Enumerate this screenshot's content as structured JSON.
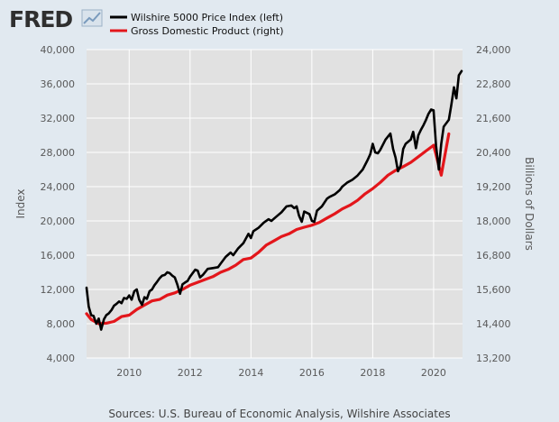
{
  "branding": {
    "logo_text": "FRED"
  },
  "colors": {
    "background": "#e1e9f0",
    "plot_background": "#e1e1e1",
    "grid": "#ffffff",
    "wilshire": "#000000",
    "gdp": "#e3161b",
    "logo_chart_icon": "#7a9bbd"
  },
  "legend": {
    "items": [
      {
        "label": "Wilshire 5000 Price Index (left)",
        "color": "#000000"
      },
      {
        "label": "Gross Domestic Product (right)",
        "color": "#e3161b"
      }
    ]
  },
  "source": "Sources: U.S. Bureau of Economic Analysis, Wilshire Associates",
  "chart_data": {
    "type": "line",
    "xlabel": "",
    "ylabel": "Index",
    "y2label": "Billions of Dollars",
    "xlim": [
      2008.6,
      2020.95
    ],
    "ylim": [
      4000,
      40000
    ],
    "y2lim": [
      13200,
      24000
    ],
    "x_ticks": [
      2010,
      2012,
      2014,
      2016,
      2018,
      2020
    ],
    "y_ticks": [
      4000,
      8000,
      12000,
      16000,
      20000,
      24000,
      28000,
      32000,
      36000,
      40000
    ],
    "y_tick_labels": [
      "4,000",
      "8,000",
      "12,000",
      "16,000",
      "20,000",
      "24,000",
      "28,000",
      "32,000",
      "36,000",
      "40,000"
    ],
    "y2_ticks": [
      13200,
      14400,
      15600,
      16800,
      18000,
      19200,
      20400,
      21600,
      22800,
      24000
    ],
    "y2_tick_labels": [
      "13,200",
      "14,400",
      "15,600",
      "16,800",
      "18,000",
      "19,200",
      "20,400",
      "21,600",
      "22,800",
      "24,000"
    ],
    "grid": true,
    "legend_position": "top-left",
    "series": [
      {
        "name": "Wilshire 5000 Price Index (left)",
        "axis": "left",
        "color": "#000000",
        "x": [
          2008.6,
          2008.67,
          2008.75,
          2008.83,
          2008.92,
          2009.0,
          2009.08,
          2009.17,
          2009.25,
          2009.33,
          2009.42,
          2009.5,
          2009.58,
          2009.67,
          2009.75,
          2009.83,
          2009.92,
          2010.0,
          2010.08,
          2010.17,
          2010.25,
          2010.33,
          2010.42,
          2010.5,
          2010.58,
          2010.67,
          2010.75,
          2010.83,
          2010.92,
          2011.0,
          2011.08,
          2011.17,
          2011.25,
          2011.33,
          2011.42,
          2011.5,
          2011.58,
          2011.67,
          2011.75,
          2011.83,
          2011.92,
          2012.0,
          2012.17,
          2012.25,
          2012.33,
          2012.42,
          2012.58,
          2012.75,
          2012.92,
          2013.0,
          2013.17,
          2013.33,
          2013.42,
          2013.58,
          2013.75,
          2013.92,
          2014.0,
          2014.08,
          2014.25,
          2014.42,
          2014.58,
          2014.67,
          2014.83,
          2015.0,
          2015.17,
          2015.33,
          2015.42,
          2015.5,
          2015.58,
          2015.67,
          2015.75,
          2015.92,
          2016.0,
          2016.08,
          2016.17,
          2016.33,
          2016.5,
          2016.58,
          2016.75,
          2016.92,
          2017.0,
          2017.17,
          2017.33,
          2017.5,
          2017.67,
          2017.83,
          2017.92,
          2018.0,
          2018.08,
          2018.17,
          2018.25,
          2018.42,
          2018.58,
          2018.67,
          2018.75,
          2018.83,
          2018.92,
          2019.0,
          2019.08,
          2019.25,
          2019.33,
          2019.42,
          2019.5,
          2019.58,
          2019.67,
          2019.75,
          2019.83,
          2019.92,
          2020.0,
          2020.08,
          2020.17,
          2020.25,
          2020.33,
          2020.5,
          2020.58,
          2020.67,
          2020.75,
          2020.83,
          2020.92
        ],
        "values": [
          12200,
          10000,
          9000,
          8900,
          8000,
          8600,
          7300,
          8500,
          9000,
          9200,
          9600,
          10100,
          10300,
          10600,
          10400,
          11000,
          10900,
          11300,
          10800,
          11800,
          12000,
          10800,
          10200,
          11100,
          10900,
          11800,
          12000,
          12500,
          12900,
          13300,
          13600,
          13700,
          14000,
          13900,
          13600,
          13400,
          12600,
          11500,
          12600,
          12800,
          13000,
          13500,
          14300,
          14200,
          13400,
          13700,
          14400,
          14500,
          14600,
          15000,
          15800,
          16300,
          16000,
          16800,
          17400,
          18500,
          18000,
          18800,
          19200,
          19800,
          20200,
          20000,
          20500,
          21000,
          21700,
          21800,
          21500,
          21700,
          20600,
          19900,
          21100,
          20800,
          20000,
          19900,
          21200,
          21700,
          22600,
          22800,
          23100,
          23600,
          24000,
          24500,
          24800,
          25300,
          26000,
          27100,
          27800,
          29000,
          28000,
          27900,
          28300,
          29500,
          30200,
          28400,
          27400,
          25800,
          26500,
          28400,
          29000,
          29500,
          30400,
          28500,
          30000,
          30600,
          31200,
          31800,
          32500,
          33000,
          32900,
          28800,
          26000,
          29000,
          31000,
          31800,
          33500,
          35600,
          34300,
          37000,
          37500
        ]
      },
      {
        "name": "Gross Domestic Product (right)",
        "axis": "right",
        "color": "#e3161b",
        "x": [
          2008.6,
          2008.75,
          2009.0,
          2009.25,
          2009.5,
          2009.75,
          2010.0,
          2010.25,
          2010.5,
          2010.75,
          2011.0,
          2011.25,
          2011.5,
          2011.75,
          2012.0,
          2012.25,
          2012.5,
          2012.75,
          2013.0,
          2013.25,
          2013.5,
          2013.75,
          2014.0,
          2014.25,
          2014.5,
          2014.75,
          2015.0,
          2015.25,
          2015.5,
          2015.75,
          2016.0,
          2016.25,
          2016.5,
          2016.75,
          2017.0,
          2017.25,
          2017.5,
          2017.75,
          2018.0,
          2018.25,
          2018.5,
          2018.75,
          2019.0,
          2019.25,
          2019.5,
          2019.75,
          2020.0,
          2020.25,
          2020.5
        ],
        "values": [
          14750,
          14550,
          14400,
          14420,
          14480,
          14650,
          14700,
          14900,
          15050,
          15200,
          15250,
          15400,
          15480,
          15600,
          15750,
          15850,
          15950,
          16050,
          16200,
          16300,
          16450,
          16650,
          16700,
          16900,
          17150,
          17300,
          17450,
          17550,
          17700,
          17780,
          17850,
          17950,
          18100,
          18250,
          18420,
          18550,
          18720,
          18950,
          19130,
          19350,
          19600,
          19770,
          19900,
          20050,
          20250,
          20450,
          20650,
          19600,
          21050
        ]
      }
    ]
  }
}
